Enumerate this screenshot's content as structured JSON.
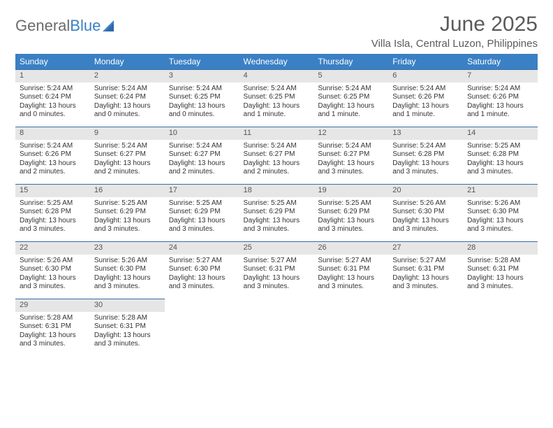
{
  "logo": {
    "text1": "General",
    "text2": "Blue"
  },
  "title": "June 2025",
  "subtitle": "Villa Isla, Central Luzon, Philippines",
  "colors": {
    "header_bg": "#3a80c4",
    "header_fg": "#ffffff",
    "daynum_bg": "#e6e6e6",
    "daynum_border": "#3a6ea5",
    "text": "#333333",
    "title": "#5a5a5a",
    "logo_gray": "#6b6b6b",
    "logo_blue": "#3a80c4",
    "page_bg": "#ffffff"
  },
  "weekdays": [
    "Sunday",
    "Monday",
    "Tuesday",
    "Wednesday",
    "Thursday",
    "Friday",
    "Saturday"
  ],
  "weeks": [
    [
      {
        "n": "1",
        "sr": "Sunrise: 5:24 AM",
        "ss": "Sunset: 6:24 PM",
        "d1": "Daylight: 13 hours",
        "d2": "and 0 minutes."
      },
      {
        "n": "2",
        "sr": "Sunrise: 5:24 AM",
        "ss": "Sunset: 6:24 PM",
        "d1": "Daylight: 13 hours",
        "d2": "and 0 minutes."
      },
      {
        "n": "3",
        "sr": "Sunrise: 5:24 AM",
        "ss": "Sunset: 6:25 PM",
        "d1": "Daylight: 13 hours",
        "d2": "and 0 minutes."
      },
      {
        "n": "4",
        "sr": "Sunrise: 5:24 AM",
        "ss": "Sunset: 6:25 PM",
        "d1": "Daylight: 13 hours",
        "d2": "and 1 minute."
      },
      {
        "n": "5",
        "sr": "Sunrise: 5:24 AM",
        "ss": "Sunset: 6:25 PM",
        "d1": "Daylight: 13 hours",
        "d2": "and 1 minute."
      },
      {
        "n": "6",
        "sr": "Sunrise: 5:24 AM",
        "ss": "Sunset: 6:26 PM",
        "d1": "Daylight: 13 hours",
        "d2": "and 1 minute."
      },
      {
        "n": "7",
        "sr": "Sunrise: 5:24 AM",
        "ss": "Sunset: 6:26 PM",
        "d1": "Daylight: 13 hours",
        "d2": "and 1 minute."
      }
    ],
    [
      {
        "n": "8",
        "sr": "Sunrise: 5:24 AM",
        "ss": "Sunset: 6:26 PM",
        "d1": "Daylight: 13 hours",
        "d2": "and 2 minutes."
      },
      {
        "n": "9",
        "sr": "Sunrise: 5:24 AM",
        "ss": "Sunset: 6:27 PM",
        "d1": "Daylight: 13 hours",
        "d2": "and 2 minutes."
      },
      {
        "n": "10",
        "sr": "Sunrise: 5:24 AM",
        "ss": "Sunset: 6:27 PM",
        "d1": "Daylight: 13 hours",
        "d2": "and 2 minutes."
      },
      {
        "n": "11",
        "sr": "Sunrise: 5:24 AM",
        "ss": "Sunset: 6:27 PM",
        "d1": "Daylight: 13 hours",
        "d2": "and 2 minutes."
      },
      {
        "n": "12",
        "sr": "Sunrise: 5:24 AM",
        "ss": "Sunset: 6:27 PM",
        "d1": "Daylight: 13 hours",
        "d2": "and 3 minutes."
      },
      {
        "n": "13",
        "sr": "Sunrise: 5:24 AM",
        "ss": "Sunset: 6:28 PM",
        "d1": "Daylight: 13 hours",
        "d2": "and 3 minutes."
      },
      {
        "n": "14",
        "sr": "Sunrise: 5:25 AM",
        "ss": "Sunset: 6:28 PM",
        "d1": "Daylight: 13 hours",
        "d2": "and 3 minutes."
      }
    ],
    [
      {
        "n": "15",
        "sr": "Sunrise: 5:25 AM",
        "ss": "Sunset: 6:28 PM",
        "d1": "Daylight: 13 hours",
        "d2": "and 3 minutes."
      },
      {
        "n": "16",
        "sr": "Sunrise: 5:25 AM",
        "ss": "Sunset: 6:29 PM",
        "d1": "Daylight: 13 hours",
        "d2": "and 3 minutes."
      },
      {
        "n": "17",
        "sr": "Sunrise: 5:25 AM",
        "ss": "Sunset: 6:29 PM",
        "d1": "Daylight: 13 hours",
        "d2": "and 3 minutes."
      },
      {
        "n": "18",
        "sr": "Sunrise: 5:25 AM",
        "ss": "Sunset: 6:29 PM",
        "d1": "Daylight: 13 hours",
        "d2": "and 3 minutes."
      },
      {
        "n": "19",
        "sr": "Sunrise: 5:25 AM",
        "ss": "Sunset: 6:29 PM",
        "d1": "Daylight: 13 hours",
        "d2": "and 3 minutes."
      },
      {
        "n": "20",
        "sr": "Sunrise: 5:26 AM",
        "ss": "Sunset: 6:30 PM",
        "d1": "Daylight: 13 hours",
        "d2": "and 3 minutes."
      },
      {
        "n": "21",
        "sr": "Sunrise: 5:26 AM",
        "ss": "Sunset: 6:30 PM",
        "d1": "Daylight: 13 hours",
        "d2": "and 3 minutes."
      }
    ],
    [
      {
        "n": "22",
        "sr": "Sunrise: 5:26 AM",
        "ss": "Sunset: 6:30 PM",
        "d1": "Daylight: 13 hours",
        "d2": "and 3 minutes."
      },
      {
        "n": "23",
        "sr": "Sunrise: 5:26 AM",
        "ss": "Sunset: 6:30 PM",
        "d1": "Daylight: 13 hours",
        "d2": "and 3 minutes."
      },
      {
        "n": "24",
        "sr": "Sunrise: 5:27 AM",
        "ss": "Sunset: 6:30 PM",
        "d1": "Daylight: 13 hours",
        "d2": "and 3 minutes."
      },
      {
        "n": "25",
        "sr": "Sunrise: 5:27 AM",
        "ss": "Sunset: 6:31 PM",
        "d1": "Daylight: 13 hours",
        "d2": "and 3 minutes."
      },
      {
        "n": "26",
        "sr": "Sunrise: 5:27 AM",
        "ss": "Sunset: 6:31 PM",
        "d1": "Daylight: 13 hours",
        "d2": "and 3 minutes."
      },
      {
        "n": "27",
        "sr": "Sunrise: 5:27 AM",
        "ss": "Sunset: 6:31 PM",
        "d1": "Daylight: 13 hours",
        "d2": "and 3 minutes."
      },
      {
        "n": "28",
        "sr": "Sunrise: 5:28 AM",
        "ss": "Sunset: 6:31 PM",
        "d1": "Daylight: 13 hours",
        "d2": "and 3 minutes."
      }
    ],
    [
      {
        "n": "29",
        "sr": "Sunrise: 5:28 AM",
        "ss": "Sunset: 6:31 PM",
        "d1": "Daylight: 13 hours",
        "d2": "and 3 minutes."
      },
      {
        "n": "30",
        "sr": "Sunrise: 5:28 AM",
        "ss": "Sunset: 6:31 PM",
        "d1": "Daylight: 13 hours",
        "d2": "and 3 minutes."
      },
      null,
      null,
      null,
      null,
      null
    ]
  ]
}
